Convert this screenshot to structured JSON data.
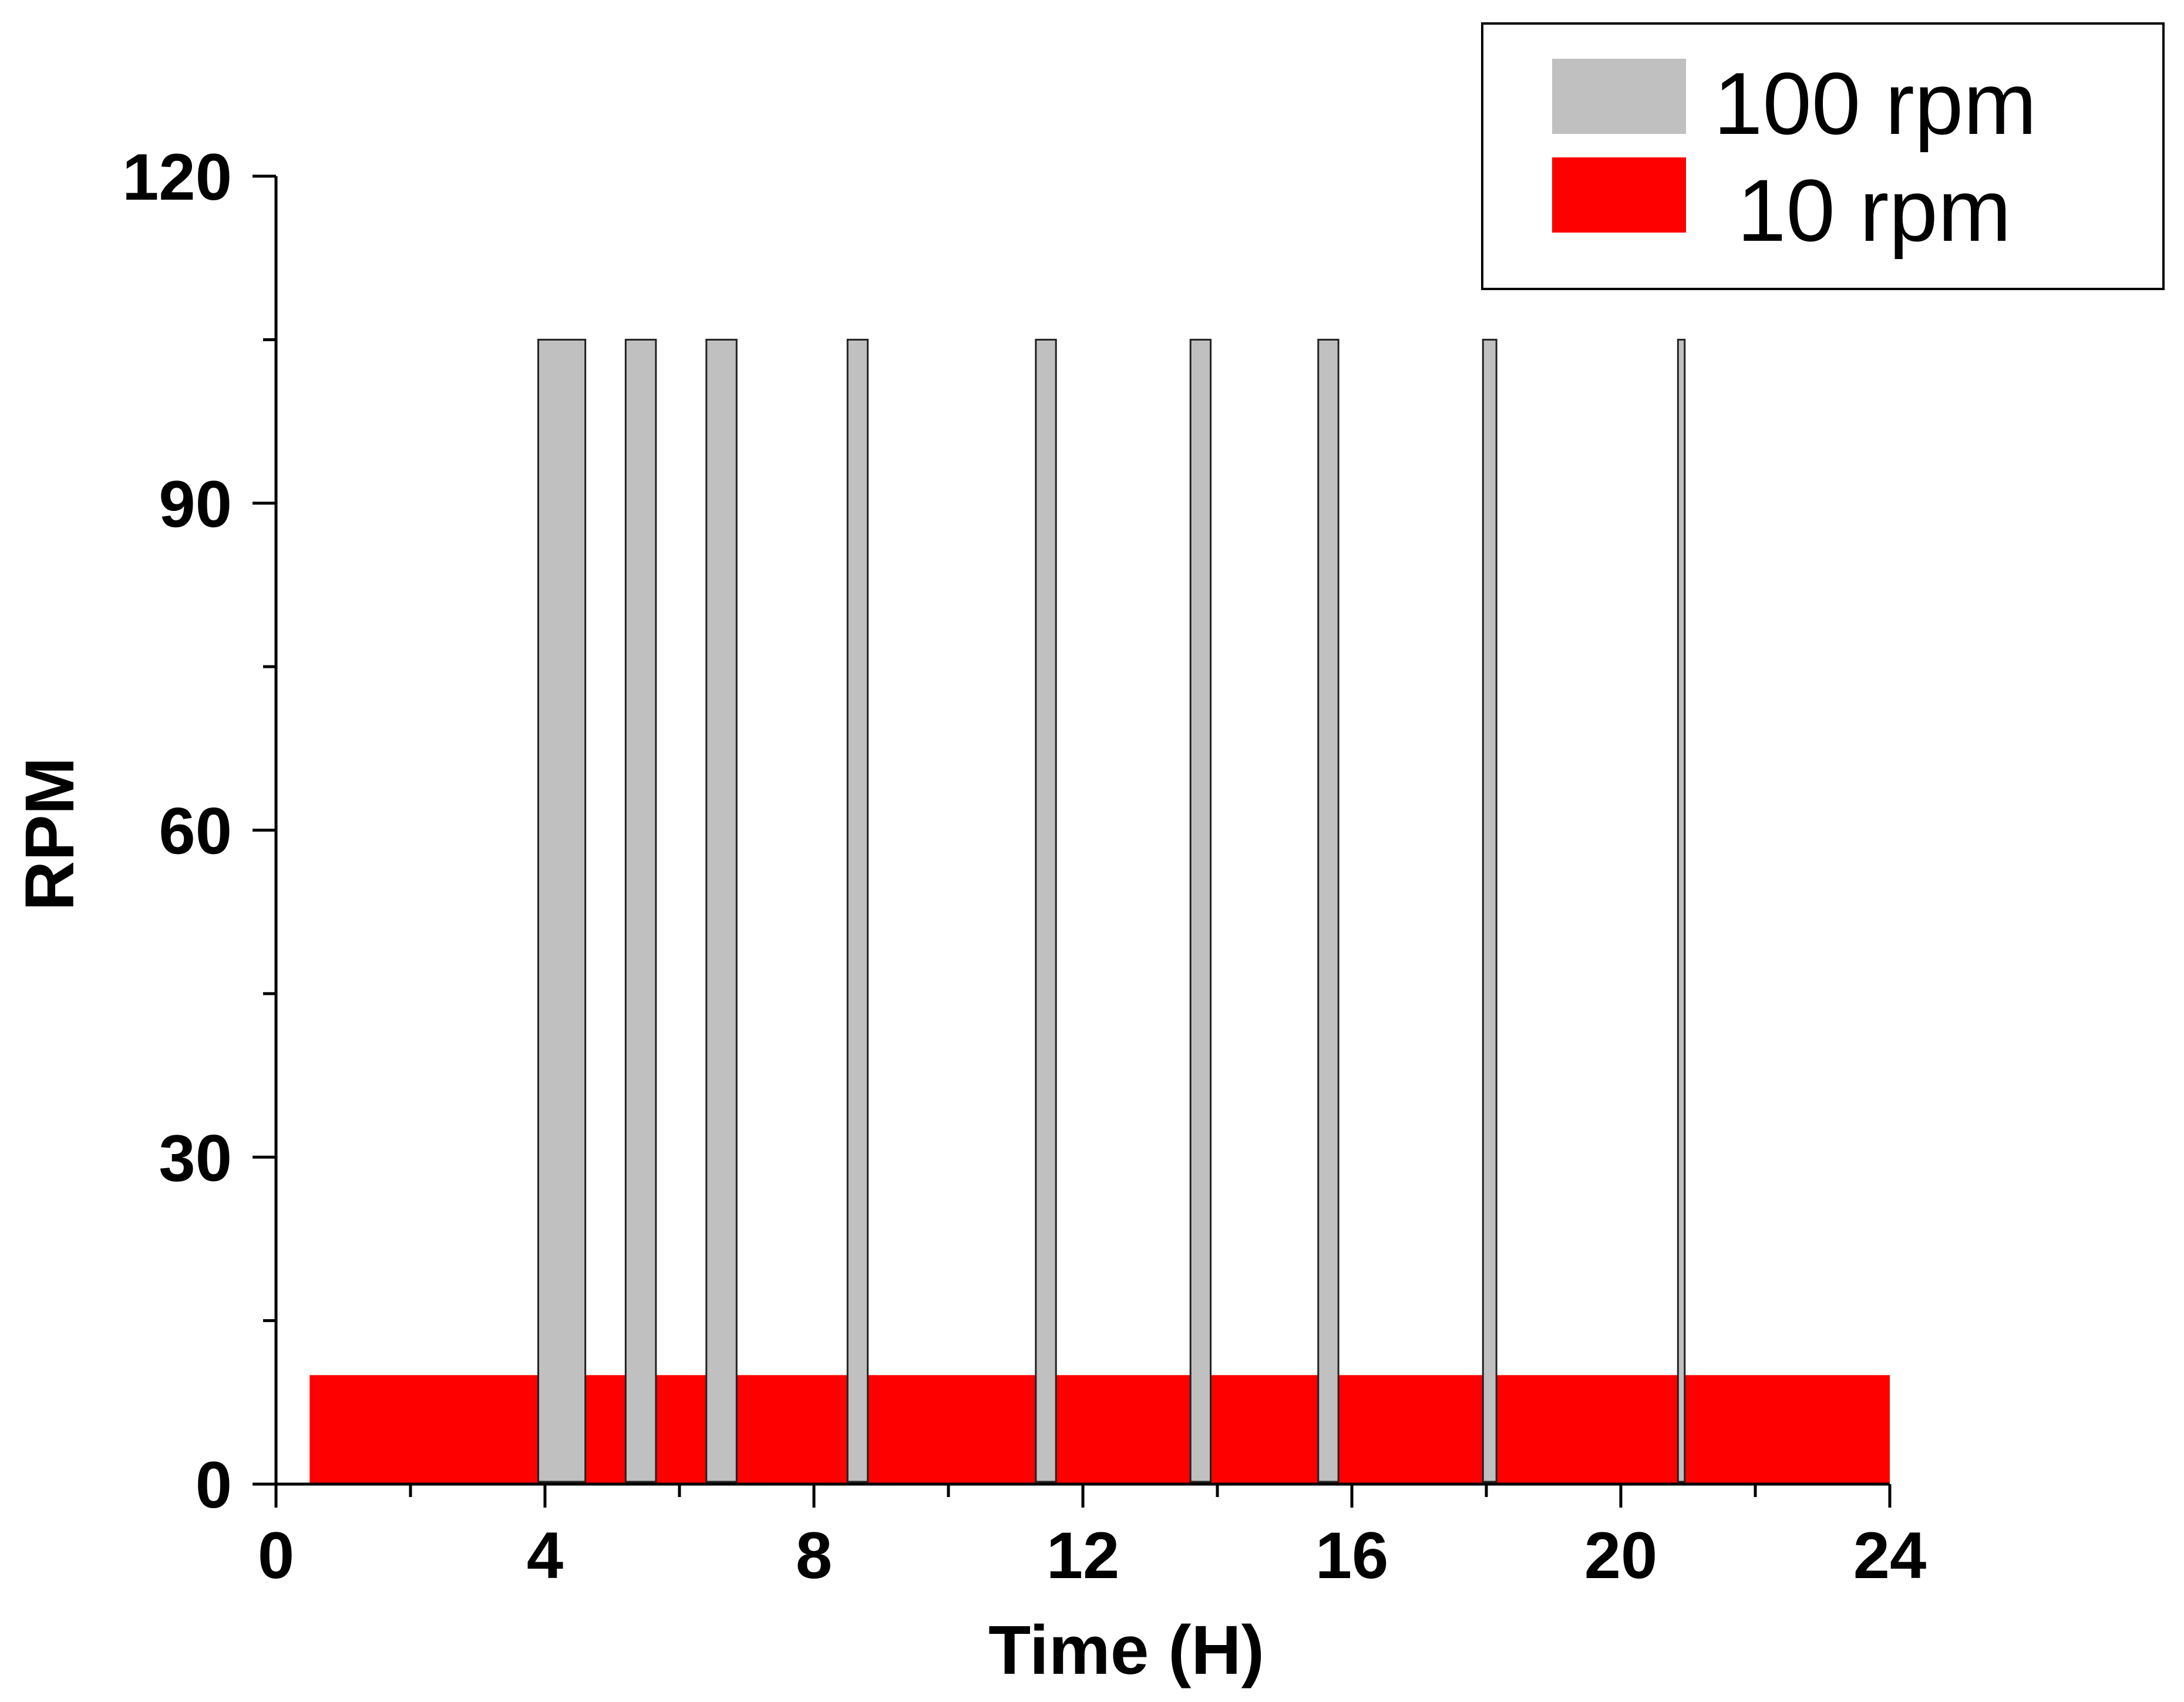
{
  "chart_data": {
    "type": "bar",
    "xlabel": "Time (H)",
    "ylabel": "RPM",
    "xlim": [
      0,
      24
    ],
    "ylim": [
      0,
      120
    ],
    "x_ticks": [
      0,
      4,
      8,
      12,
      16,
      20,
      24
    ],
    "y_ticks": [
      0,
      30,
      60,
      90,
      120
    ],
    "legend_position": "top-right",
    "series": [
      {
        "name": "100 rpm",
        "color": "#c0c0c0",
        "bars": [
          {
            "start": 3.9,
            "end": 4.6,
            "value": 105
          },
          {
            "start": 5.2,
            "end": 5.65,
            "value": 105
          },
          {
            "start": 6.4,
            "end": 6.85,
            "value": 105
          },
          {
            "start": 8.5,
            "end": 8.8,
            "value": 105
          },
          {
            "start": 11.3,
            "end": 11.6,
            "value": 105
          },
          {
            "start": 13.6,
            "end": 13.9,
            "value": 105
          },
          {
            "start": 15.5,
            "end": 15.8,
            "value": 105
          },
          {
            "start": 17.95,
            "end": 18.15,
            "value": 105
          },
          {
            "start": 20.85,
            "end": 20.95,
            "value": 105
          }
        ]
      },
      {
        "name": "10 rpm",
        "color": "#ff0000",
        "bars": [
          {
            "start": 0.5,
            "end": 24,
            "value": 10
          }
        ]
      }
    ]
  }
}
